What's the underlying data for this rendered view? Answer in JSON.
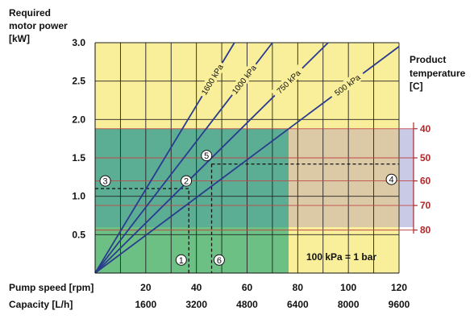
{
  "chart_data": {
    "type": "line",
    "ylabel_lines": [
      "Required",
      "motor power",
      "[kW]"
    ],
    "right_label_lines": [
      "Product",
      "temperature",
      "[C]"
    ],
    "xlabel_speed": "Pump speed [rpm]",
    "xlabel_capacity": "Capacity [L/h]",
    "ylim": [
      0,
      3.0
    ],
    "xlim": [
      0,
      120
    ],
    "y_ticks": [
      "3.0",
      "2.5",
      "2.0",
      "1.5",
      "1.0",
      "0.5"
    ],
    "y_tick_values": [
      3.0,
      2.5,
      2.0,
      1.5,
      1.0,
      0.5
    ],
    "x_ticks_speed": [
      "20",
      "40",
      "60",
      "80",
      "100",
      "120"
    ],
    "x_tick_values": [
      20,
      40,
      60,
      80,
      100,
      120
    ],
    "x_ticks_capacity": [
      "1600",
      "3200",
      "4800",
      "6400",
      "8000",
      "9600"
    ],
    "temp_ticks": [
      "40",
      "50",
      "60",
      "70",
      "80"
    ],
    "temp_power_values": [
      1.88,
      1.5,
      1.2,
      0.88,
      0.56
    ],
    "grid": true,
    "series": [
      {
        "name": "1600 kPa",
        "x": [
          0,
          55
        ],
        "y": [
          0,
          3.0
        ]
      },
      {
        "name": "1000 kPa",
        "x": [
          0,
          70
        ],
        "y": [
          0,
          3.0
        ]
      },
      {
        "name": "750 kPa",
        "x": [
          0,
          92
        ],
        "y": [
          0,
          3.0
        ]
      },
      {
        "name": "500 kPa",
        "x": [
          0,
          120
        ],
        "y": [
          0,
          2.95
        ]
      }
    ],
    "markers": [
      {
        "label": "1",
        "x": 34,
        "y": 0.17
      },
      {
        "label": "2",
        "x": 36,
        "y": 1.2
      },
      {
        "label": "3",
        "x": 4,
        "y": 1.2
      },
      {
        "label": "4",
        "x": 117,
        "y": 1.22
      },
      {
        "label": "5",
        "x": 44,
        "y": 1.53
      },
      {
        "label": "6",
        "x": 49,
        "y": 0.17
      }
    ],
    "dashed_paths": [
      {
        "x": [
          0,
          37,
          37
        ],
        "y": [
          1.1,
          1.1,
          0
        ]
      },
      {
        "x": [
          46,
          120
        ],
        "y": [
          1.42,
          1.42
        ]
      },
      {
        "x": [
          46,
          46
        ],
        "y": [
          1.42,
          0
        ]
      }
    ],
    "annotation": "100 kPa = 1 bar",
    "colors": {
      "yellow": "#f9ef9a",
      "green": "#68be82",
      "teal_overlay": "#5b9fa3",
      "gray_overlay": "#dcc9a6",
      "lilac_band": "#c9cbe6",
      "lines": "#2a3b8f",
      "temperature": "#b0282a"
    }
  }
}
